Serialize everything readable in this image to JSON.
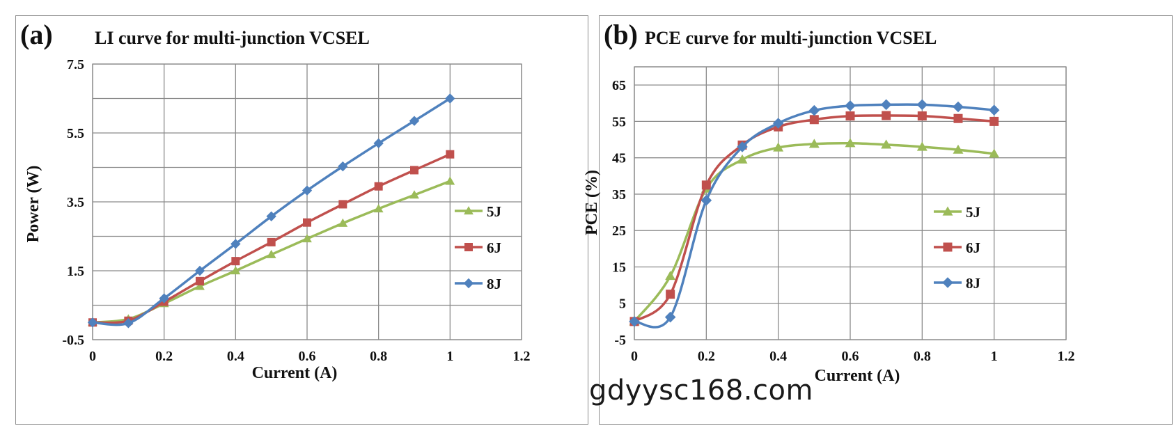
{
  "chart_data": [
    {
      "type": "line",
      "panel_label": "(a)",
      "title": "LI  curve for  multi-junction VCSEL",
      "xlabel": "Current (A)",
      "ylabel": "Power (W)",
      "xlim": [
        0,
        1.2
      ],
      "ylim": [
        -0.5,
        7.5
      ],
      "xticks": [
        0,
        0.2,
        0.4,
        0.6,
        0.8,
        1,
        1.2
      ],
      "xtick_labels": [
        "0",
        "0.2",
        "0.4",
        "0.6",
        "0.8",
        "1",
        "1.2"
      ],
      "yticks": [
        -0.5,
        1.5,
        3.5,
        5.5,
        7.5
      ],
      "ytick_labels": [
        "-0.5",
        "1.5",
        "3.5",
        "5.5",
        "7.5"
      ],
      "x_grid": [
        0,
        0.2,
        0.4,
        0.6,
        0.8,
        1,
        1.2
      ],
      "y_grid": [
        -0.5,
        0.5,
        1.5,
        2.5,
        3.5,
        4.5,
        5.5,
        6.5,
        7.5
      ],
      "grid": true,
      "legend_position": "right",
      "x": [
        0,
        0.1,
        0.2,
        0.3,
        0.4,
        0.5,
        0.6,
        0.7,
        0.8,
        0.9,
        1
      ],
      "series": [
        {
          "name": "5J",
          "color": "#9bbb59",
          "marker": "triangle",
          "values": [
            0.0,
            0.1,
            0.55,
            1.05,
            1.5,
            1.97,
            2.43,
            2.88,
            3.3,
            3.7,
            4.1
          ]
        },
        {
          "name": "6J",
          "color": "#c0504d",
          "marker": "square",
          "values": [
            0.0,
            0.05,
            0.6,
            1.2,
            1.78,
            2.33,
            2.9,
            3.43,
            3.95,
            4.42,
            4.88
          ]
        },
        {
          "name": "8J",
          "color": "#4f81bd",
          "marker": "diamond",
          "values": [
            0.0,
            -0.02,
            0.7,
            1.5,
            2.28,
            3.08,
            3.83,
            4.53,
            5.2,
            5.85,
            6.5
          ]
        }
      ]
    },
    {
      "type": "line",
      "panel_label": "(b)",
      "title": "PCE curve for multi-junction VCSEL",
      "xlabel": "Current (A)",
      "ylabel": "PCE (%)",
      "xlim": [
        0,
        1.2
      ],
      "ylim": [
        -5,
        70
      ],
      "xticks": [
        0,
        0.2,
        0.4,
        0.6,
        0.8,
        1,
        1.2
      ],
      "xtick_labels": [
        "0",
        "0.2",
        "0.4",
        "0.6",
        "0.8",
        "1",
        "1.2"
      ],
      "yticks": [
        -5,
        5,
        15,
        25,
        35,
        45,
        55,
        65
      ],
      "ytick_labels": [
        "-5",
        "5",
        "15",
        "25",
        "35",
        "45",
        "55",
        "65"
      ],
      "x_grid": [
        0,
        0.2,
        0.4,
        0.6,
        0.8,
        1,
        1.2
      ],
      "y_grid": [
        -5,
        5,
        15,
        25,
        35,
        45,
        55,
        65,
        70
      ],
      "grid": true,
      "legend_position": "right",
      "x": [
        0,
        0.1,
        0.2,
        0.3,
        0.4,
        0.5,
        0.6,
        0.7,
        0.8,
        0.9,
        1
      ],
      "series": [
        {
          "name": "5J",
          "color": "#9bbb59",
          "marker": "triangle",
          "values": [
            0,
            12.5,
            36.5,
            44.5,
            47.8,
            48.8,
            49,
            48.6,
            48,
            47.2,
            46.1
          ]
        },
        {
          "name": "6J",
          "color": "#c0504d",
          "marker": "square",
          "values": [
            0,
            7.5,
            37.5,
            48.5,
            53.5,
            55.5,
            56.5,
            56.6,
            56.5,
            55.8,
            55
          ]
        },
        {
          "name": "8J",
          "color": "#4f81bd",
          "marker": "diamond",
          "values": [
            0,
            1.2,
            33.3,
            48,
            54.5,
            58,
            59.3,
            59.6,
            59.6,
            59,
            58.1
          ]
        }
      ]
    }
  ],
  "watermark": "gdyysc168.com"
}
